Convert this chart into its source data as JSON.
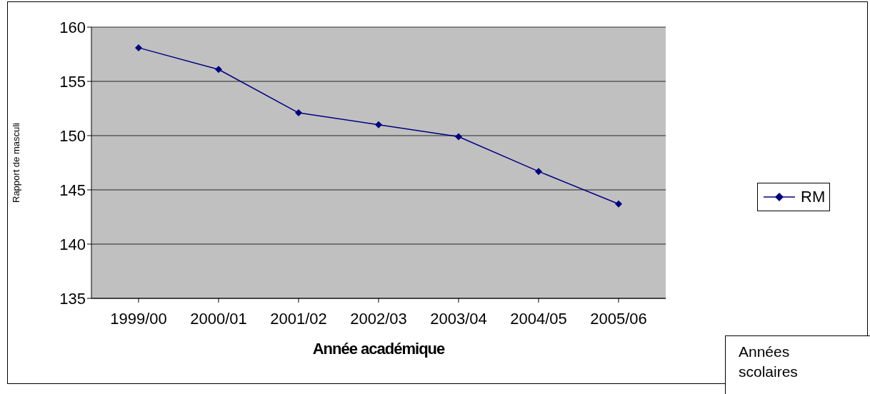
{
  "chart_data": {
    "type": "line",
    "xlabel": "Année académique",
    "ylabel": "Rapport de masculi",
    "categories": [
      "1999/00",
      "2000/01",
      "2001/02",
      "2002/03",
      "2003/04",
      "2004/05",
      "2005/06"
    ],
    "series": [
      {
        "name": "RM",
        "color": "#000080",
        "values": [
          158.1,
          156.1,
          152.1,
          151.0,
          149.9,
          146.7,
          143.7
        ]
      }
    ],
    "ylim": [
      135,
      160
    ],
    "yticks": [
      135,
      140,
      145,
      150,
      155,
      160
    ],
    "grid": "y",
    "legend": "right",
    "marker": "diamond",
    "annotations": [
      "Années scolaires"
    ]
  }
}
